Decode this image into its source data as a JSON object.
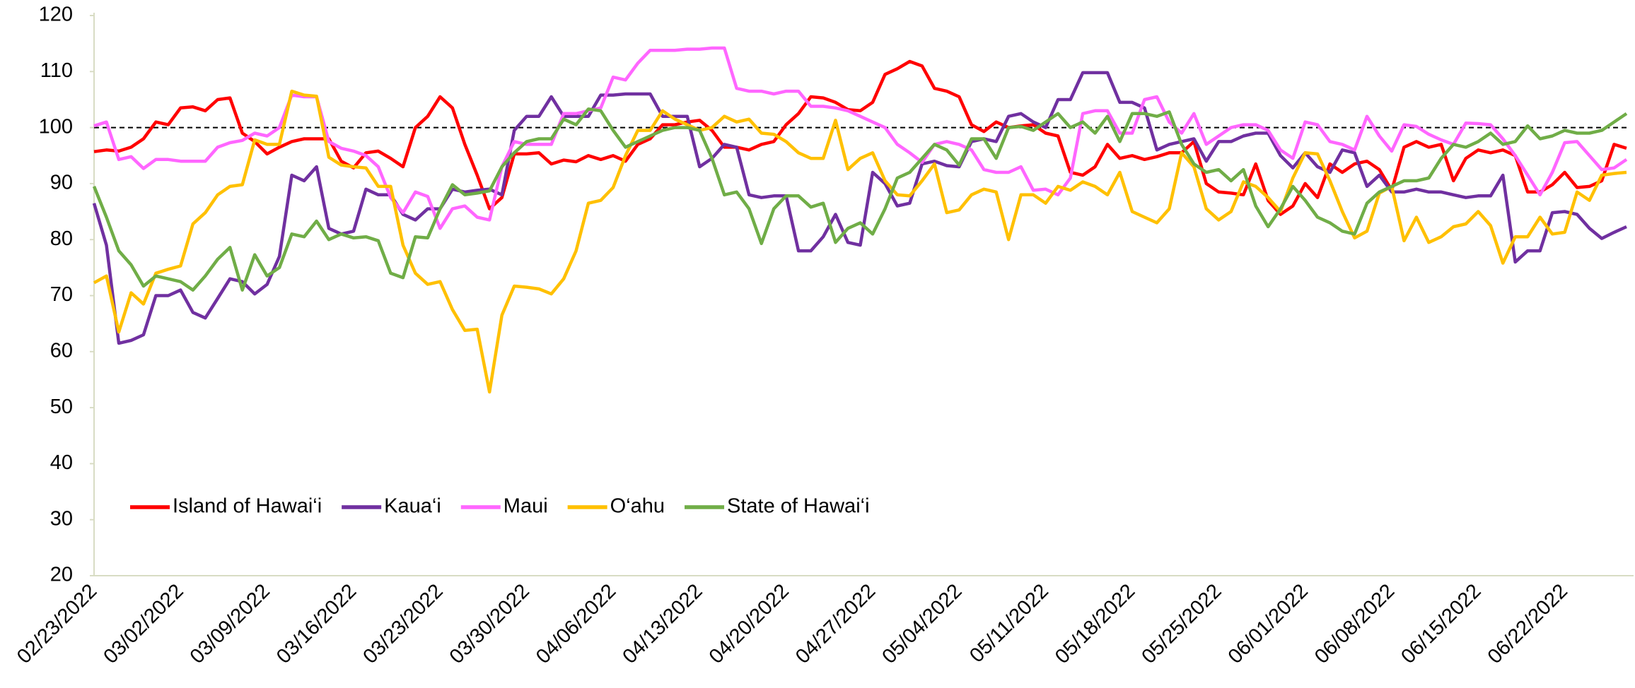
{
  "chart_data": {
    "type": "line",
    "categories": [
      "02/23/2022",
      null,
      null,
      null,
      null,
      null,
      null,
      "03/02/2022",
      null,
      null,
      null,
      null,
      null,
      null,
      "03/09/2022",
      null,
      null,
      null,
      null,
      null,
      null,
      "03/16/2022",
      null,
      null,
      null,
      null,
      null,
      null,
      "03/23/2022",
      null,
      null,
      null,
      null,
      null,
      null,
      "03/30/2022",
      null,
      null,
      null,
      null,
      null,
      null,
      "04/06/2022",
      null,
      null,
      null,
      null,
      null,
      null,
      "04/13/2022",
      null,
      null,
      null,
      null,
      null,
      null,
      "04/20/2022",
      null,
      null,
      null,
      null,
      null,
      null,
      "04/27/2022",
      null,
      null,
      null,
      null,
      null,
      null,
      "05/04/2022",
      null,
      null,
      null,
      null,
      null,
      null,
      "05/11/2022",
      null,
      null,
      null,
      null,
      null,
      null,
      "05/18/2022",
      null,
      null,
      null,
      null,
      null,
      null,
      "05/25/2022",
      null,
      null,
      null,
      null,
      null,
      null,
      "06/01/2022",
      null,
      null,
      null,
      null,
      null,
      null,
      "06/08/2022",
      null,
      null,
      null,
      null,
      null,
      null,
      "06/15/2022",
      null,
      null,
      null,
      null,
      null,
      null,
      "06/22/2022",
      null,
      null,
      null,
      null,
      null
    ],
    "series": [
      {
        "name": "Island of Hawai‘i",
        "color": "#ff0000",
        "values": [
          95.7,
          96,
          95.8,
          96.5,
          98,
          101,
          100.5,
          103.5,
          103.7,
          103,
          105,
          105.3,
          99,
          97.5,
          95.3,
          96.5,
          97.5,
          98,
          98,
          98,
          94,
          92.8,
          95.5,
          95.8,
          94.5,
          93,
          100,
          102,
          105.5,
          103.5,
          97,
          91.5,
          85.5,
          87.5,
          95.3,
          95.3,
          95.5,
          93.5,
          94.2,
          93.9,
          95,
          94.3,
          95,
          94,
          97,
          98,
          100.5,
          100.5,
          101,
          101.3,
          99.5,
          96.5,
          96.5,
          96,
          97,
          97.5,
          100.5,
          102.5,
          105.5,
          105.3,
          104.5,
          103.2,
          103,
          104.5,
          109.5,
          110.5,
          111.8,
          111,
          107,
          106.5,
          105.5,
          100.5,
          99.3,
          101,
          100,
          100.3,
          100.5,
          99,
          98.5,
          92,
          91.5,
          93,
          97,
          94.5,
          95,
          94.3,
          94.8,
          95.5,
          95.5,
          97.5,
          90,
          88.5,
          88.3,
          88,
          93.5,
          87,
          84.5,
          86,
          90,
          87.5,
          93.5,
          92,
          93.5,
          94,
          92.5,
          88.8,
          96.5,
          97.5,
          96.5,
          97,
          90.5,
          94.5,
          96,
          95.5,
          96,
          95,
          88.5,
          88.5,
          89.8,
          92,
          89.3,
          89.5,
          90.5,
          97,
          96.3
        ]
      },
      {
        "name": "Kaua‘i",
        "color": "#7030a0",
        "values": [
          86.5,
          79,
          61.5,
          62,
          63,
          70,
          70,
          71,
          67,
          66,
          69.5,
          73,
          72.5,
          70.3,
          72,
          77,
          91.5,
          90.5,
          93,
          82,
          81,
          81.5,
          89,
          88,
          88,
          84.5,
          83.5,
          85.5,
          85.5,
          89,
          88.5,
          88.8,
          89,
          88,
          99.5,
          102,
          102,
          105.5,
          102,
          102,
          102,
          105.8,
          105.8,
          106,
          106,
          106,
          102,
          102,
          102,
          93,
          94.5,
          97,
          96.5,
          88,
          87.5,
          87.8,
          87.8,
          78,
          78,
          80.5,
          84.5,
          79.5,
          79,
          92,
          90,
          86,
          86.5,
          93.5,
          94,
          93.2,
          93,
          97.5,
          98,
          97.5,
          102,
          102.5,
          101,
          100,
          105,
          105,
          109.8,
          109.8,
          109.8,
          104.5,
          104.5,
          103.5,
          96,
          97,
          97.5,
          98,
          94,
          97.5,
          97.5,
          98.5,
          99,
          99,
          95,
          92.8,
          95.5,
          93,
          92,
          96,
          95.5,
          89.5,
          91.5,
          88.5,
          88.5,
          89,
          88.5,
          88.5,
          88,
          87.5,
          87.8,
          87.8,
          91.5,
          76,
          78,
          78,
          84.8,
          85,
          84.5,
          82,
          80.2,
          81.3,
          82.3
        ]
      },
      {
        "name": "Maui",
        "color": "#ff66ff",
        "values": [
          100.3,
          101,
          94.3,
          94.8,
          92.7,
          94.3,
          94.3,
          94,
          94,
          94,
          96.5,
          97.3,
          97.7,
          99,
          98.5,
          100,
          105.8,
          105.5,
          105.5,
          97.5,
          96.3,
          95.8,
          95,
          93,
          87.5,
          84.8,
          88.5,
          87.7,
          82,
          85.5,
          86,
          84,
          83.5,
          93,
          97.5,
          97,
          97,
          97,
          102.5,
          102.5,
          103,
          103.5,
          109,
          108.5,
          111.5,
          113.8,
          113.8,
          113.8,
          114,
          114,
          114.2,
          114.2,
          107,
          106.5,
          106.5,
          106,
          106.5,
          106.5,
          103.8,
          103.8,
          103.5,
          103,
          102,
          101,
          100,
          97,
          95.5,
          93.8,
          97,
          97.5,
          97,
          96,
          92.5,
          92,
          92,
          93,
          88.8,
          89,
          88,
          91,
          102.5,
          103,
          103,
          99,
          99,
          105,
          105.5,
          101,
          99,
          102.5,
          97,
          98.5,
          100,
          100.5,
          100.5,
          99.5,
          96,
          94.5,
          101,
          100.5,
          97.5,
          97,
          96,
          102,
          98.5,
          95.8,
          100.5,
          100.2,
          98.8,
          97.8,
          97,
          100.8,
          100.7,
          100.5,
          98,
          95,
          91.5,
          88,
          92,
          97.3,
          97.5,
          95,
          92.5,
          92.8,
          94.3
        ]
      },
      {
        "name": "O‘ahu",
        "color": "#ffc000",
        "values": [
          72.3,
          73.5,
          63.5,
          70.5,
          68.5,
          74,
          74.7,
          75.3,
          82.8,
          84.8,
          88,
          89.5,
          89.8,
          97.8,
          97,
          97,
          106.5,
          105.8,
          105.6,
          94.7,
          93.3,
          93,
          92.8,
          89.5,
          89.5,
          79,
          74,
          72,
          72.5,
          67.5,
          63.8,
          64,
          52.8,
          66.5,
          71.7,
          71.5,
          71.2,
          70.3,
          73,
          78,
          86.5,
          87,
          89.3,
          95,
          99.5,
          99.5,
          103,
          101.5,
          100.5,
          99.5,
          100,
          102,
          101,
          101.5,
          99,
          98.8,
          97.5,
          95.5,
          94.5,
          94.5,
          101.3,
          92.5,
          94.5,
          95.5,
          90.5,
          88,
          87.8,
          90.5,
          93.5,
          84.8,
          85.3,
          88,
          89,
          88.5,
          80,
          88,
          88,
          86.5,
          89.5,
          88.8,
          90.3,
          89.5,
          88,
          92,
          85,
          84,
          83,
          85.5,
          95.5,
          93,
          85.5,
          83.5,
          85,
          90.3,
          89.5,
          87.5,
          85,
          91,
          95.5,
          95.3,
          90.5,
          85,
          80.3,
          81.5,
          88.3,
          89.5,
          79.8,
          84,
          79.5,
          80.5,
          82.3,
          82.8,
          85,
          82.5,
          75.8,
          80.5,
          80.5,
          84,
          81,
          81.3,
          88.5,
          87,
          91.5,
          91.8,
          92
        ]
      },
      {
        "name": "State of Hawai‘i",
        "color": "#70ad47",
        "values": [
          89.5,
          84,
          78,
          75.5,
          71.7,
          73.5,
          73,
          72.5,
          71,
          73.5,
          76.5,
          78.6,
          71,
          77.3,
          73.5,
          75,
          81,
          80.5,
          83.3,
          80,
          81,
          80.3,
          80.5,
          79.8,
          74,
          73.2,
          80.5,
          80.3,
          85.5,
          89.8,
          88,
          88.3,
          88.7,
          93,
          95.5,
          97.5,
          98,
          98,
          101.5,
          100.5,
          103.3,
          103,
          99.5,
          96.5,
          97.5,
          98.5,
          99.5,
          100,
          100,
          99.5,
          94.5,
          88,
          88.5,
          85.5,
          79.3,
          85.5,
          87.8,
          87.8,
          85.8,
          86.5,
          79.5,
          82,
          83,
          81,
          85.5,
          91,
          92,
          94.5,
          97,
          96,
          93.3,
          98,
          98,
          94.5,
          100,
          100.2,
          99.5,
          101,
          102.5,
          100,
          101,
          99,
          102,
          97.5,
          102.5,
          102.5,
          102,
          102.8,
          97,
          93.5,
          92,
          92.5,
          90.5,
          92.5,
          86,
          82.3,
          85.5,
          89.5,
          87,
          84,
          83,
          81.5,
          81,
          86.5,
          88.5,
          89.5,
          90.5,
          90.5,
          91,
          94.5,
          97,
          96.5,
          97.5,
          99,
          97,
          97.5,
          100.3,
          98,
          98.5,
          99.5,
          99,
          99,
          99.5,
          101,
          102.5
        ]
      }
    ],
    "reference_line": 100,
    "ylim": [
      20,
      120
    ],
    "yticks": [
      20,
      30,
      40,
      50,
      60,
      70,
      80,
      90,
      100,
      110,
      120
    ],
    "grid": false,
    "legend": "inside-lower-left"
  }
}
